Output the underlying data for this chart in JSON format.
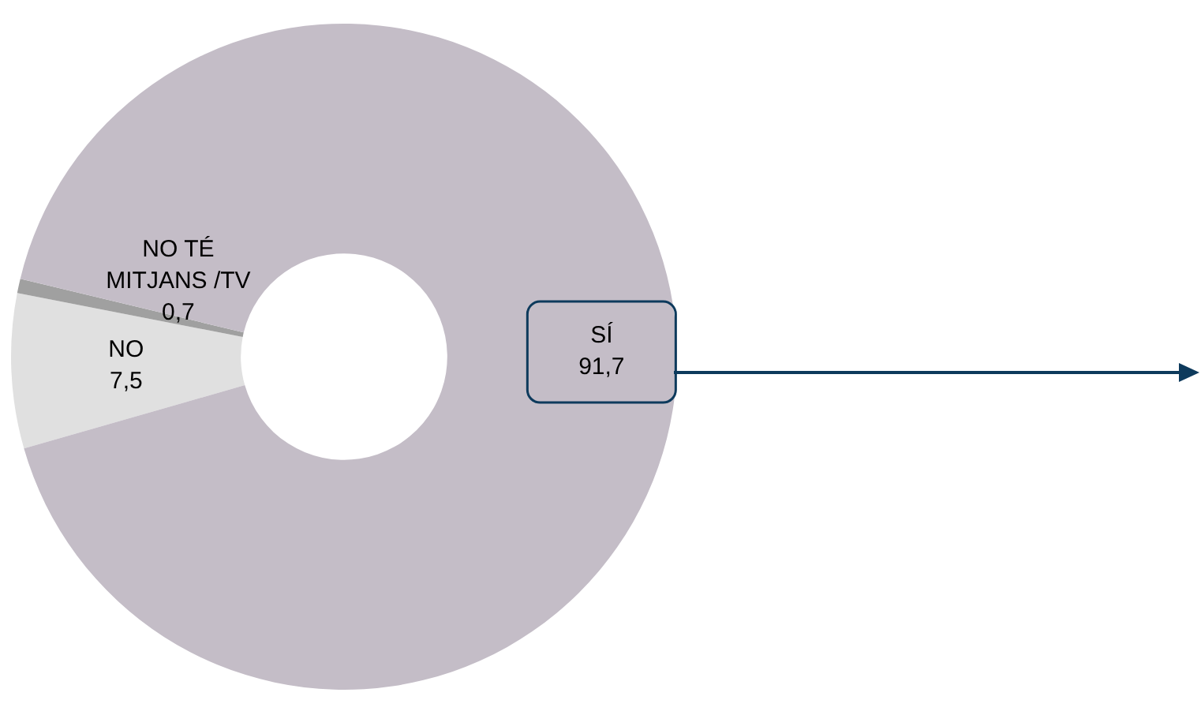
{
  "chart_data": {
    "type": "donut",
    "categories": [
      "NO",
      "NO TÉ MITJANS /TV",
      "SÍ"
    ],
    "values": [
      7.5,
      0.7,
      91.7
    ],
    "value_labels": [
      "7,5",
      "0,7",
      "91,7"
    ],
    "colors": [
      "#e0e0e0",
      "#a0a0a0",
      "#c4bdc7"
    ],
    "legend": false
  }
}
